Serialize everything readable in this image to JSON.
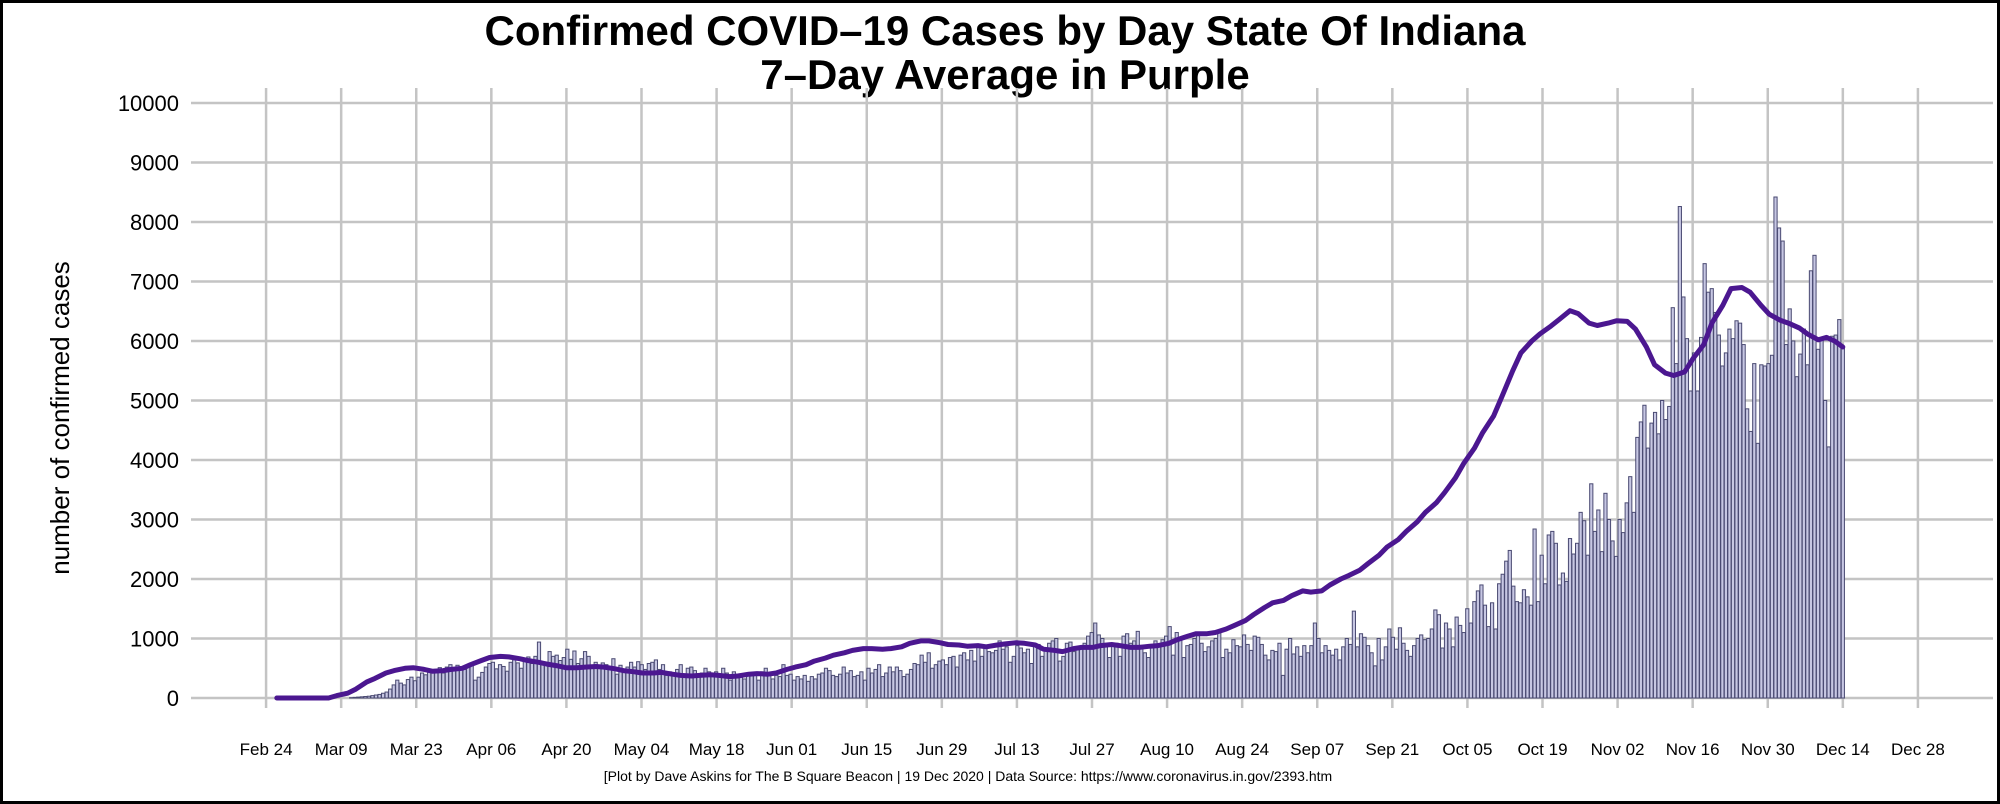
{
  "chart_data": {
    "type": "bar",
    "title": "Confirmed COVID–19 Cases by Day State Of Indiana",
    "subtitle": "7–Day Average in Purple",
    "xlabel": "",
    "ylabel": "number of confirmed cases",
    "ylim": [
      0,
      10000
    ],
    "yticks": [
      0,
      1000,
      2000,
      3000,
      4000,
      5000,
      6000,
      7000,
      8000,
      9000,
      10000
    ],
    "yticklabels": [
      "0",
      "1000",
      "2000",
      "3000",
      "4000",
      "5000",
      "6000",
      "7000",
      "8000",
      "9000",
      "10000"
    ],
    "xticks": [
      0,
      14,
      28,
      42,
      56,
      70,
      84,
      98,
      112,
      126,
      140,
      154,
      168,
      182,
      196,
      210,
      224,
      238,
      252,
      266,
      280,
      294,
      308
    ],
    "xticklabels": [
      "Feb 24",
      "Mar 09",
      "Mar 23",
      "Apr 06",
      "Apr 20",
      "May 04",
      "May 18",
      "Jun 01",
      "Jun 15",
      "Jun 29",
      "Jul 13",
      "Jul 27",
      "Aug 10",
      "Aug 24",
      "Sep 07",
      "Sep 21",
      "Oct 05",
      "Oct 19",
      "Nov 02",
      "Nov 16",
      "Nov 30",
      "Dec 14",
      "Dec 28"
    ],
    "x_range_days": [
      -14,
      322
    ],
    "x_start_date": "Feb 24",
    "bar_start_day": 2,
    "daily_cases": [
      0,
      0,
      0,
      0,
      0,
      0,
      0,
      0,
      0,
      0,
      0,
      0,
      0,
      0,
      0,
      0,
      0,
      0,
      0,
      0,
      0,
      5,
      10,
      15,
      20,
      25,
      30,
      40,
      50,
      60,
      80,
      100,
      150,
      220,
      300,
      250,
      220,
      310,
      350,
      290,
      350,
      420,
      390,
      460,
      430,
      480,
      510,
      420,
      520,
      560,
      470,
      550,
      500,
      480,
      520,
      580,
      300,
      350,
      430,
      520,
      580,
      600,
      490,
      560,
      530,
      450,
      600,
      640,
      590,
      500,
      620,
      690,
      580,
      700,
      940,
      610,
      600,
      780,
      700,
      720,
      630,
      680,
      820,
      650,
      790,
      580,
      660,
      780,
      700,
      500,
      600,
      520,
      590,
      560,
      520,
      660,
      400,
      550,
      480,
      520,
      600,
      520,
      610,
      560,
      480,
      580,
      600,
      640,
      480,
      560,
      380,
      440,
      400,
      480,
      560,
      380,
      500,
      520,
      460,
      400,
      420,
      500,
      440,
      360,
      440,
      380,
      500,
      420,
      300,
      440,
      400,
      360,
      320,
      400,
      380,
      420,
      300,
      440,
      500,
      380,
      320,
      380,
      360,
      560,
      380,
      400,
      300,
      360,
      320,
      380,
      280,
      360,
      320,
      400,
      420,
      500,
      460,
      380,
      360,
      400,
      520,
      420,
      460,
      360,
      380,
      440,
      300,
      500,
      420,
      480,
      560,
      360,
      420,
      520,
      440,
      520,
      460,
      360,
      400,
      480,
      580,
      560,
      720,
      600,
      760,
      500,
      560,
      620,
      640,
      560,
      680,
      700,
      520,
      720,
      760,
      640,
      800,
      620,
      900,
      700,
      860,
      780,
      760,
      800,
      960,
      820,
      860,
      600,
      700,
      880,
      840,
      760,
      820,
      580,
      880,
      900,
      700,
      840,
      920,
      960,
      1000,
      620,
      700,
      920,
      940,
      780,
      860,
      860,
      920,
      1040,
      1100,
      1260,
      1060,
      1000,
      900,
      680,
      880,
      920,
      700,
      1040,
      1080,
      920,
      960,
      1120,
      860,
      760,
      680,
      880,
      960,
      880,
      980,
      1040,
      1200,
      720,
      1100,
      980,
      680,
      880,
      900,
      1000,
      1100,
      920,
      780,
      860,
      960,
      1000,
      1120,
      680,
      820,
      760,
      980,
      880,
      860,
      1060,
      900,
      800,
      1040,
      1020,
      900,
      720,
      640,
      800,
      780,
      920,
      380,
      820,
      1000,
      740,
      860,
      700,
      880,
      760,
      880,
      1260,
      1000,
      760,
      880,
      800,
      720,
      820,
      640,
      860,
      1000,
      900,
      1460,
      860,
      1080,
      1020,
      880,
      760,
      540,
      1000,
      640,
      860,
      1160,
      1020,
      820,
      1180,
      920,
      800,
      700,
      880,
      1000,
      1060,
      980,
      1000,
      1160,
      1480,
      1400,
      840,
      1260,
      1160,
      860,
      1360,
      1220,
      1100,
      1500,
      1260,
      1620,
      1800,
      1900,
      1560,
      1200,
      1600,
      1160,
      1920,
      2080,
      2300,
      2480,
      1880,
      1620,
      1600,
      1820,
      1700,
      1560,
      2840,
      1620,
      2400,
      1920,
      2740,
      2800,
      2600,
      1900,
      2100,
      1960,
      2680,
      2420,
      2600,
      3120,
      2980,
      2400,
      3600,
      2800,
      3160,
      2460,
      3440,
      3000,
      2640,
      2380,
      3000,
      2780,
      3280,
      3720,
      3120,
      4380,
      4640,
      4920,
      4200,
      4620,
      4800,
      4440,
      5000,
      4680,
      4900,
      6560,
      5620,
      8260,
      6740,
      6040,
      5160,
      5800,
      5160,
      6060,
      7300,
      6820,
      6880,
      6480,
      6100,
      5580,
      5800,
      6200,
      6040,
      6340,
      6300,
      5940,
      4860,
      4480,
      5620,
      4280,
      5600,
      5580,
      5620,
      5760,
      8420,
      7900,
      7680,
      5940,
      6540,
      6000,
      5400,
      5780,
      6200,
      5600,
      7180,
      7440,
      5860,
      6040,
      5000,
      4220,
      6080,
      6100,
      6360,
      5900
    ],
    "avg_line": [
      [
        2,
        0
      ],
      [
        7,
        0
      ],
      [
        14,
        0
      ],
      [
        21,
        0
      ],
      [
        24,
        40
      ],
      [
        28,
        80
      ],
      [
        31,
        150
      ],
      [
        35,
        270
      ],
      [
        38,
        330
      ],
      [
        42,
        420
      ],
      [
        45,
        460
      ],
      [
        49,
        500
      ],
      [
        52,
        510
      ],
      [
        56,
        480
      ],
      [
        59,
        450
      ],
      [
        63,
        460
      ],
      [
        66,
        480
      ],
      [
        70,
        500
      ],
      [
        73,
        560
      ],
      [
        77,
        630
      ],
      [
        80,
        680
      ],
      [
        84,
        700
      ],
      [
        87,
        690
      ],
      [
        91,
        660
      ],
      [
        94,
        630
      ],
      [
        98,
        600
      ],
      [
        101,
        570
      ],
      [
        105,
        540
      ],
      [
        108,
        510
      ],
      [
        112,
        510
      ],
      [
        115,
        520
      ],
      [
        119,
        530
      ],
      [
        122,
        520
      ],
      [
        126,
        490
      ],
      [
        129,
        460
      ],
      [
        133,
        440
      ],
      [
        136,
        420
      ],
      [
        140,
        420
      ],
      [
        143,
        430
      ],
      [
        147,
        400
      ],
      [
        150,
        380
      ],
      [
        154,
        370
      ],
      [
        157,
        380
      ],
      [
        161,
        390
      ],
      [
        164,
        380
      ],
      [
        168,
        360
      ],
      [
        171,
        370
      ],
      [
        175,
        400
      ],
      [
        178,
        410
      ],
      [
        182,
        400
      ],
      [
        185,
        420
      ],
      [
        189,
        480
      ],
      [
        192,
        520
      ],
      [
        196,
        560
      ],
      [
        199,
        620
      ],
      [
        203,
        670
      ],
      [
        206,
        720
      ],
      [
        210,
        760
      ],
      [
        213,
        800
      ],
      [
        217,
        830
      ],
      [
        220,
        830
      ],
      [
        224,
        820
      ],
      [
        227,
        830
      ],
      [
        231,
        860
      ],
      [
        234,
        920
      ],
      [
        238,
        960
      ],
      [
        241,
        960
      ],
      [
        245,
        930
      ],
      [
        248,
        900
      ],
      [
        252,
        890
      ],
      [
        255,
        870
      ],
      [
        259,
        880
      ],
      [
        262,
        860
      ],
      [
        266,
        890
      ],
      [
        269,
        910
      ],
      [
        273,
        930
      ],
      [
        276,
        920
      ],
      [
        280,
        890
      ],
      [
        283,
        820
      ],
      [
        287,
        800
      ],
      [
        290,
        780
      ],
      [
        294,
        830
      ],
      [
        297,
        850
      ],
      [
        301,
        850
      ],
      [
        304,
        880
      ],
      [
        308,
        900
      ],
      [
        311,
        880
      ],
      [
        315,
        850
      ],
      [
        318,
        850
      ],
      [
        322,
        870
      ],
      [
        325,
        880
      ],
      [
        329,
        920
      ],
      [
        332,
        980
      ],
      [
        336,
        1040
      ],
      [
        339,
        1080
      ],
      [
        343,
        1080
      ],
      [
        346,
        1100
      ],
      [
        350,
        1160
      ],
      [
        353,
        1220
      ],
      [
        357,
        1300
      ],
      [
        360,
        1400
      ],
      [
        364,
        1520
      ],
      [
        367,
        1600
      ],
      [
        371,
        1640
      ],
      [
        374,
        1720
      ],
      [
        378,
        1800
      ],
      [
        381,
        1780
      ],
      [
        385,
        1800
      ],
      [
        388,
        1900
      ],
      [
        392,
        2000
      ],
      [
        395,
        2060
      ],
      [
        399,
        2150
      ],
      [
        402,
        2260
      ],
      [
        406,
        2400
      ],
      [
        409,
        2540
      ],
      [
        413,
        2660
      ],
      [
        416,
        2800
      ],
      [
        420,
        2960
      ],
      [
        423,
        3120
      ],
      [
        427,
        3280
      ],
      [
        430,
        3450
      ],
      [
        434,
        3700
      ],
      [
        437,
        3940
      ],
      [
        441,
        4200
      ],
      [
        444,
        4460
      ],
      [
        448,
        4740
      ],
      [
        451,
        5060
      ],
      [
        455,
        5500
      ],
      [
        458,
        5800
      ],
      [
        462,
        6000
      ],
      [
        465,
        6120
      ],
      [
        469,
        6250
      ],
      [
        472,
        6360
      ],
      [
        476,
        6510
      ],
      [
        479,
        6460
      ],
      [
        483,
        6300
      ],
      [
        486,
        6260
      ],
      [
        490,
        6300
      ],
      [
        493,
        6340
      ],
      [
        497,
        6330
      ],
      [
        500,
        6200
      ],
      [
        504,
        5900
      ],
      [
        507,
        5600
      ],
      [
        511,
        5460
      ],
      [
        514,
        5420
      ],
      [
        518,
        5480
      ],
      [
        521,
        5700
      ],
      [
        525,
        5940
      ],
      [
        528,
        6300
      ],
      [
        532,
        6600
      ],
      [
        535,
        6880
      ],
      [
        539,
        6900
      ],
      [
        542,
        6820
      ],
      [
        546,
        6600
      ],
      [
        549,
        6450
      ],
      [
        553,
        6350
      ],
      [
        556,
        6300
      ],
      [
        560,
        6220
      ],
      [
        563,
        6120
      ],
      [
        567,
        6020
      ],
      [
        570,
        6060
      ],
      [
        573,
        6000
      ],
      [
        576,
        5900
      ]
    ]
  },
  "caption": "[Plot by Dave Askins for The B Square Beacon | 19 Dec 2020 | Data Source: https://www.coronavirus.in.gov/2393.htm"
}
